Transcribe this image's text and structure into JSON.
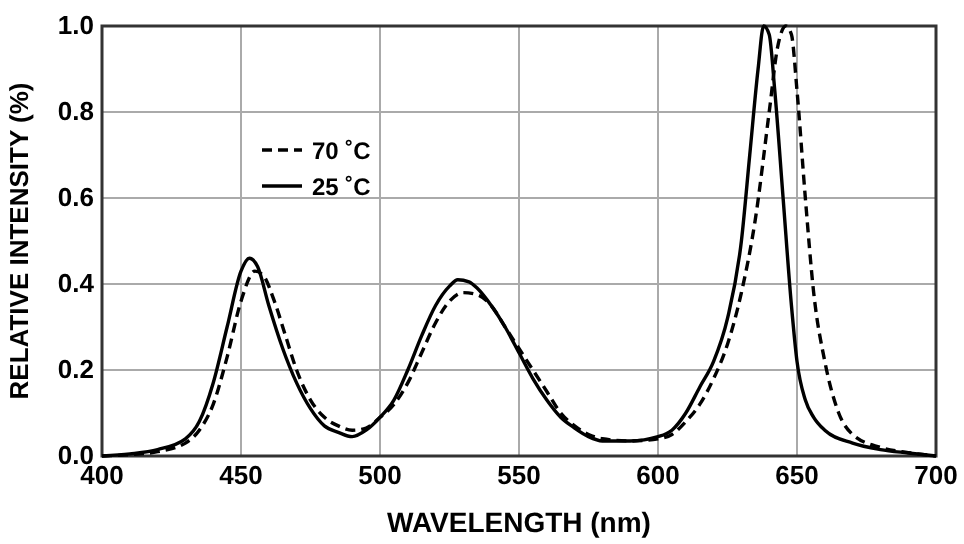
{
  "chart_data": {
    "type": "line",
    "xlabel": "WAVELENGTH (nm)",
    "ylabel": "RELATIVE INTENSITY (%)",
    "xlim": [
      400,
      700
    ],
    "xticks": [
      400,
      450,
      500,
      550,
      600,
      650,
      700
    ],
    "ylim": [
      0,
      1
    ],
    "yticks": [
      {
        "value": 0,
        "label": "0.0"
      },
      {
        "value": 0.2,
        "label": "0.2"
      },
      {
        "value": 0.4,
        "label": "0.4"
      },
      {
        "value": 0.6,
        "label": "0.6"
      },
      {
        "value": 0.8,
        "label": "0.8"
      },
      {
        "value": 1,
        "label": "1.0"
      }
    ],
    "grid": true,
    "legend": "top left",
    "marker": "none",
    "series": [
      {
        "name": "70 ˚C",
        "color": "#000000",
        "line_style": "dashed",
        "x": [
          400,
          410,
          420,
          430,
          435,
          440,
          445,
          450,
          455,
          458,
          462,
          466,
          470,
          475,
          480,
          485,
          490,
          495,
          500,
          505,
          510,
          515,
          520,
          525,
          530,
          535,
          540,
          545,
          550,
          555,
          560,
          565,
          570,
          575,
          580,
          590,
          600,
          605,
          610,
          615,
          620,
          625,
          630,
          635,
          640,
          643,
          646,
          648,
          650,
          653,
          656,
          660,
          665,
          670,
          680,
          690,
          700
        ],
        "values": [
          0,
          0.003,
          0.01,
          0.03,
          0.06,
          0.12,
          0.23,
          0.36,
          0.43,
          0.42,
          0.36,
          0.28,
          0.2,
          0.13,
          0.09,
          0.07,
          0.06,
          0.065,
          0.09,
          0.12,
          0.17,
          0.24,
          0.31,
          0.36,
          0.38,
          0.375,
          0.35,
          0.3,
          0.25,
          0.2,
          0.15,
          0.1,
          0.07,
          0.05,
          0.04,
          0.035,
          0.04,
          0.05,
          0.08,
          0.12,
          0.18,
          0.26,
          0.38,
          0.55,
          0.8,
          0.95,
          1,
          0.98,
          0.85,
          0.6,
          0.38,
          0.22,
          0.1,
          0.05,
          0.02,
          0.008,
          0
        ]
      },
      {
        "name": "25 ˚C",
        "color": "#000000",
        "line_style": "solid",
        "x": [
          400,
          410,
          420,
          430,
          435,
          440,
          445,
          450,
          453,
          456,
          460,
          465,
          470,
          475,
          480,
          485,
          490,
          495,
          500,
          505,
          510,
          515,
          520,
          525,
          528,
          532,
          535,
          540,
          545,
          550,
          555,
          560,
          565,
          570,
          575,
          580,
          590,
          600,
          605,
          610,
          615,
          620,
          625,
          630,
          633,
          636,
          638,
          640,
          642,
          645,
          648,
          650,
          653,
          656,
          660,
          670,
          680,
          690,
          700
        ],
        "values": [
          0,
          0.005,
          0.015,
          0.04,
          0.08,
          0.17,
          0.3,
          0.43,
          0.46,
          0.44,
          0.35,
          0.25,
          0.17,
          0.11,
          0.07,
          0.055,
          0.045,
          0.06,
          0.09,
          0.13,
          0.2,
          0.28,
          0.35,
          0.395,
          0.41,
          0.405,
          0.39,
          0.35,
          0.3,
          0.24,
          0.18,
          0.13,
          0.09,
          0.065,
          0.045,
          0.035,
          0.035,
          0.045,
          0.06,
          0.1,
          0.16,
          0.22,
          0.32,
          0.5,
          0.7,
          0.9,
          1,
          0.98,
          0.85,
          0.6,
          0.35,
          0.22,
          0.13,
          0.09,
          0.06,
          0.03,
          0.015,
          0.007,
          0
        ]
      }
    ]
  }
}
